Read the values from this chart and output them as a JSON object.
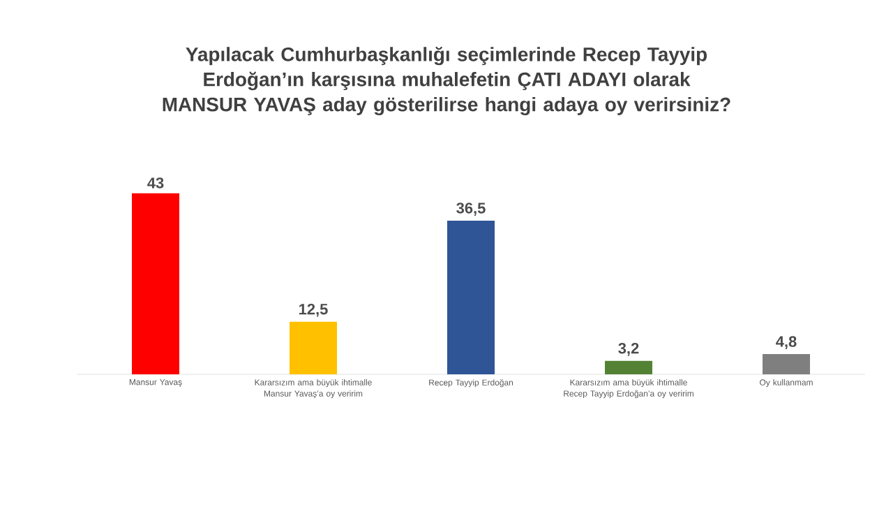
{
  "chart_data": {
    "type": "bar",
    "title": "Yapılacak Cumhurbaşkanlığı seçimlerinde  Recep Tayyip Erdoğan’ın karşısına muhalefetin ÇATI ADAYI olarak MANSUR YAVAŞ aday gösterilirse hangi adaya oy verirsiniz?",
    "categories": [
      "Mansur Yavaş",
      "Kararsızım ama büyük ihtimalle Mansur Yavaş’a oy veririm",
      "Recep Tayyip Erdoğan",
      "Kararsızım ama büyük ihtimalle Recep Tayyip Erdoğan’a oy veririm",
      "Oy kullanmam"
    ],
    "values": [
      43,
      12.5,
      36.5,
      3.2,
      4.8
    ],
    "value_labels": [
      "43",
      "12,5",
      "36,5",
      "3,2",
      "4,8"
    ],
    "colors": [
      "#ff0000",
      "#ffc000",
      "#2f5597",
      "#548235",
      "#7f7f7f"
    ],
    "data_labels": false
  }
}
